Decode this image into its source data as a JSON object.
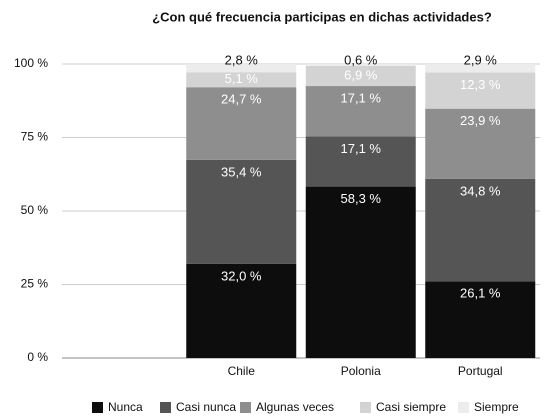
{
  "chart_data": {
    "type": "stacked_bar",
    "title": "¿Con qué frecuencia participas en dichas actividades?",
    "categories": [
      null,
      "Chile",
      "Polonia",
      "Portugal"
    ],
    "series": [
      {
        "name": "Nunca",
        "color": "#0d0d0d",
        "values": [
          null,
          32.0,
          58.3,
          26.1
        ],
        "value_labels": [
          null,
          "32,0 %",
          "58,3 %",
          "26,1 %"
        ]
      },
      {
        "name": "Casi nunca",
        "color": "#555555",
        "values": [
          null,
          35.4,
          17.1,
          34.8
        ],
        "value_labels": [
          null,
          "35,4 %",
          "17,1 %",
          "34,8 %"
        ]
      },
      {
        "name": "Algunas veces",
        "color": "#8e8e8e",
        "values": [
          null,
          24.7,
          17.1,
          23.9
        ],
        "value_labels": [
          null,
          "24,7 %",
          "17,1 %",
          "23,9 %"
        ]
      },
      {
        "name": "Casi siempre",
        "color": "#d3d3d3",
        "values": [
          null,
          5.1,
          6.9,
          12.3
        ],
        "value_labels": [
          null,
          "5,1 %",
          "6,9 %",
          "12,3 %"
        ]
      },
      {
        "name": "Siempre",
        "color": "#ececec",
        "values": [
          null,
          2.8,
          0.6,
          2.9
        ],
        "value_labels": [
          null,
          "2,8 %",
          "0,6 %",
          "2,9 %"
        ]
      }
    ],
    "ylim": [
      0,
      100
    ],
    "yticks": [
      {
        "value": 0,
        "label": "0 %"
      },
      {
        "value": 25,
        "label": "25 %"
      },
      {
        "value": 50,
        "label": "50 %"
      },
      {
        "value": 75,
        "label": "75 %"
      },
      {
        "value": 100,
        "label": "100 %"
      }
    ],
    "grid": true,
    "legend": "bottom"
  }
}
